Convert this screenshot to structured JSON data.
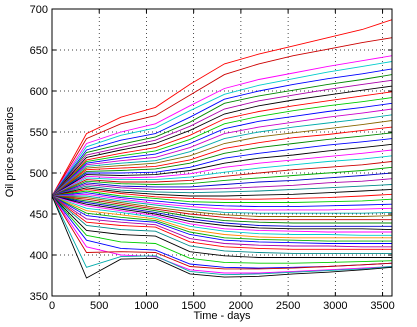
{
  "chart_data": {
    "type": "line",
    "title": "",
    "xlabel": "Time - days",
    "ylabel": "Oil price scenarios",
    "xlim": [
      0,
      3600
    ],
    "ylim": [
      350,
      700
    ],
    "xticks": [
      0,
      500,
      1000,
      1500,
      2000,
      2500,
      3000,
      3500
    ],
    "yticks": [
      350,
      400,
      450,
      500,
      550,
      600,
      650,
      700
    ],
    "grid": "on, dotted",
    "legend": "none",
    "x": [
      0,
      365,
      730,
      1095,
      1460,
      1825,
      2190,
      2555,
      2920,
      3285,
      3600
    ],
    "series": [
      {
        "color": "#ff0000",
        "values": [
          472,
          548,
          568,
          580,
          608,
          633,
          645,
          655,
          665,
          675,
          687
        ]
      },
      {
        "color": "#cc0000",
        "values": [
          472,
          542,
          560,
          570,
          595,
          620,
          633,
          643,
          651,
          659,
          665
        ]
      },
      {
        "color": "#ff00ff",
        "values": [
          472,
          536,
          550,
          560,
          582,
          603,
          614,
          622,
          630,
          637,
          643
        ]
      },
      {
        "color": "#00cccc",
        "values": [
          472,
          532,
          546,
          555,
          576,
          596,
          607,
          615,
          623,
          630,
          636
        ]
      },
      {
        "color": "#0000ff",
        "values": [
          472,
          528,
          540,
          548,
          568,
          590,
          600,
          608,
          615,
          621,
          627
        ]
      },
      {
        "color": "#008800",
        "values": [
          472,
          525,
          535,
          544,
          562,
          585,
          594,
          601,
          608,
          614,
          620
        ]
      },
      {
        "color": "#aa00aa",
        "values": [
          472,
          522,
          531,
          540,
          557,
          578,
          588,
          595,
          602,
          608,
          613
        ]
      },
      {
        "color": "#000000",
        "values": [
          472,
          519,
          528,
          536,
          552,
          572,
          582,
          589,
          595,
          601,
          606
        ]
      },
      {
        "color": "#ff0000",
        "values": [
          472,
          516,
          524,
          531,
          546,
          566,
          575,
          582,
          588,
          594,
          599
        ]
      },
      {
        "color": "#00cc00",
        "values": [
          472,
          514,
          521,
          527,
          541,
          560,
          569,
          576,
          582,
          587,
          592
        ]
      },
      {
        "color": "#0000ff",
        "values": [
          472,
          512,
          518,
          523,
          536,
          554,
          563,
          569,
          575,
          580,
          585
        ]
      },
      {
        "color": "#cc00cc",
        "values": [
          472,
          510,
          515,
          519,
          531,
          548,
          556,
          562,
          568,
          573,
          578
        ]
      },
      {
        "color": "#00aaaa",
        "values": [
          472,
          508,
          512,
          515,
          526,
          542,
          550,
          556,
          561,
          566,
          571
        ]
      },
      {
        "color": "#886600",
        "values": [
          472,
          506,
          509,
          512,
          521,
          536,
          544,
          549,
          554,
          559,
          564
        ]
      },
      {
        "color": "#ff0000",
        "values": [
          472,
          504,
          506,
          508,
          516,
          530,
          537,
          543,
          547,
          552,
          556
        ]
      },
      {
        "color": "#008800",
        "values": [
          472,
          502,
          503,
          505,
          512,
          524,
          531,
          536,
          541,
          545,
          549
        ]
      },
      {
        "color": "#0000ff",
        "values": [
          472,
          500,
          500,
          501,
          507,
          518,
          524,
          529,
          534,
          538,
          542
        ]
      },
      {
        "color": "#000000",
        "values": [
          472,
          498,
          497,
          498,
          503,
          512,
          518,
          522,
          527,
          531,
          535
        ]
      },
      {
        "color": "#ff00ff",
        "values": [
          472,
          496,
          494,
          495,
          499,
          507,
          512,
          516,
          520,
          524,
          528
        ]
      },
      {
        "color": "#00cccc",
        "values": [
          472,
          494,
          492,
          492,
          495,
          501,
          506,
          510,
          514,
          517,
          521
        ]
      },
      {
        "color": "#cc0000",
        "values": [
          472,
          492,
          489,
          489,
          491,
          496,
          500,
          504,
          507,
          510,
          514
        ]
      },
      {
        "color": "#00aa00",
        "values": [
          472,
          490,
          487,
          486,
          487,
          491,
          494,
          497,
          500,
          503,
          507
        ]
      },
      {
        "color": "#0000cc",
        "values": [
          472,
          488,
          484,
          483,
          483,
          486,
          489,
          491,
          494,
          497,
          500
        ]
      },
      {
        "color": "#aa00aa",
        "values": [
          472,
          486,
          482,
          480,
          480,
          481,
          483,
          485,
          488,
          490,
          493
        ]
      },
      {
        "color": "#008888",
        "values": [
          472,
          484,
          479,
          477,
          476,
          477,
          478,
          480,
          482,
          484,
          486
        ]
      },
      {
        "color": "#000000",
        "values": [
          472,
          482,
          477,
          474,
          472,
          472,
          473,
          474,
          476,
          478,
          480
        ]
      },
      {
        "color": "#ff0000",
        "values": [
          472,
          480,
          475,
          471,
          469,
          468,
          468,
          469,
          470,
          472,
          474
        ]
      },
      {
        "color": "#00cc00",
        "values": [
          472,
          478,
          472,
          469,
          465,
          464,
          464,
          464,
          465,
          466,
          468
        ]
      },
      {
        "color": "#0000ff",
        "values": [
          472,
          476,
          470,
          466,
          462,
          460,
          459,
          459,
          460,
          461,
          462
        ]
      },
      {
        "color": "#ff00ff",
        "values": [
          472,
          474,
          468,
          463,
          459,
          456,
          455,
          455,
          455,
          456,
          457
        ]
      },
      {
        "color": "#00aaaa",
        "values": [
          472,
          472,
          466,
          461,
          456,
          452,
          451,
          451,
          451,
          451,
          452
        ]
      },
      {
        "color": "#886600",
        "values": [
          472,
          470,
          464,
          458,
          453,
          449,
          447,
          447,
          447,
          447,
          448
        ]
      },
      {
        "color": "#cc0000",
        "values": [
          472,
          468,
          462,
          456,
          450,
          446,
          443,
          443,
          443,
          443,
          443
        ]
      },
      {
        "color": "#008800",
        "values": [
          472,
          466,
          460,
          454,
          447,
          442,
          440,
          439,
          439,
          439,
          439
        ]
      },
      {
        "color": "#0000cc",
        "values": [
          472,
          464,
          458,
          452,
          444,
          439,
          436,
          435,
          435,
          435,
          435
        ]
      },
      {
        "color": "#000000",
        "values": [
          472,
          462,
          456,
          450,
          441,
          436,
          433,
          432,
          432,
          432,
          431
        ]
      },
      {
        "color": "#ff00ff",
        "values": [
          472,
          460,
          454,
          448,
          438,
          432,
          430,
          429,
          428,
          428,
          428
        ]
      },
      {
        "color": "#00cccc",
        "values": [
          472,
          457,
          452,
          446,
          435,
          429,
          426,
          425,
          425,
          424,
          424
        ]
      },
      {
        "color": "#ff8800",
        "values": [
          472,
          454,
          449,
          444,
          431,
          425,
          422,
          421,
          421,
          421,
          421
        ]
      },
      {
        "color": "#00aa00",
        "values": [
          472,
          451,
          446,
          442,
          428,
          421,
          419,
          418,
          417,
          417,
          417
        ]
      },
      {
        "color": "#0000ff",
        "values": [
          472,
          448,
          443,
          440,
          425,
          418,
          416,
          415,
          414,
          414,
          414
        ]
      },
      {
        "color": "#aa00aa",
        "values": [
          472,
          444,
          440,
          437,
          420,
          414,
          412,
          411,
          411,
          410,
          410
        ]
      },
      {
        "color": "#ff0000",
        "values": [
          472,
          440,
          436,
          434,
          416,
          410,
          408,
          407,
          407,
          407,
          407
        ]
      },
      {
        "color": "#008888",
        "values": [
          472,
          436,
          431,
          429,
          411,
          405,
          403,
          402,
          402,
          402,
          402
        ]
      },
      {
        "color": "#000000",
        "values": [
          472,
          430,
          425,
          423,
          404,
          399,
          397,
          397,
          397,
          397,
          397
        ]
      },
      {
        "color": "#00cc00",
        "values": [
          472,
          424,
          416,
          414,
          396,
          391,
          390,
          390,
          391,
          392,
          393
        ]
      },
      {
        "color": "#0000ff",
        "values": [
          472,
          418,
          408,
          406,
          389,
          385,
          384,
          385,
          386,
          388,
          390
        ]
      },
      {
        "color": "#ff00ff",
        "values": [
          472,
          410,
          400,
          398,
          382,
          378,
          378,
          380,
          382,
          384,
          386
        ]
      },
      {
        "color": "#cc0000",
        "values": [
          472,
          403,
          404,
          403,
          386,
          383,
          383,
          384,
          386,
          388,
          390
        ]
      },
      {
        "color": "#00aaaa",
        "values": [
          472,
          385,
          398,
          399,
          380,
          376,
          377,
          379,
          381,
          383,
          386
        ]
      },
      {
        "color": "#000000",
        "values": [
          472,
          372,
          395,
          396,
          377,
          373,
          374,
          377,
          379,
          382,
          385
        ]
      }
    ]
  }
}
